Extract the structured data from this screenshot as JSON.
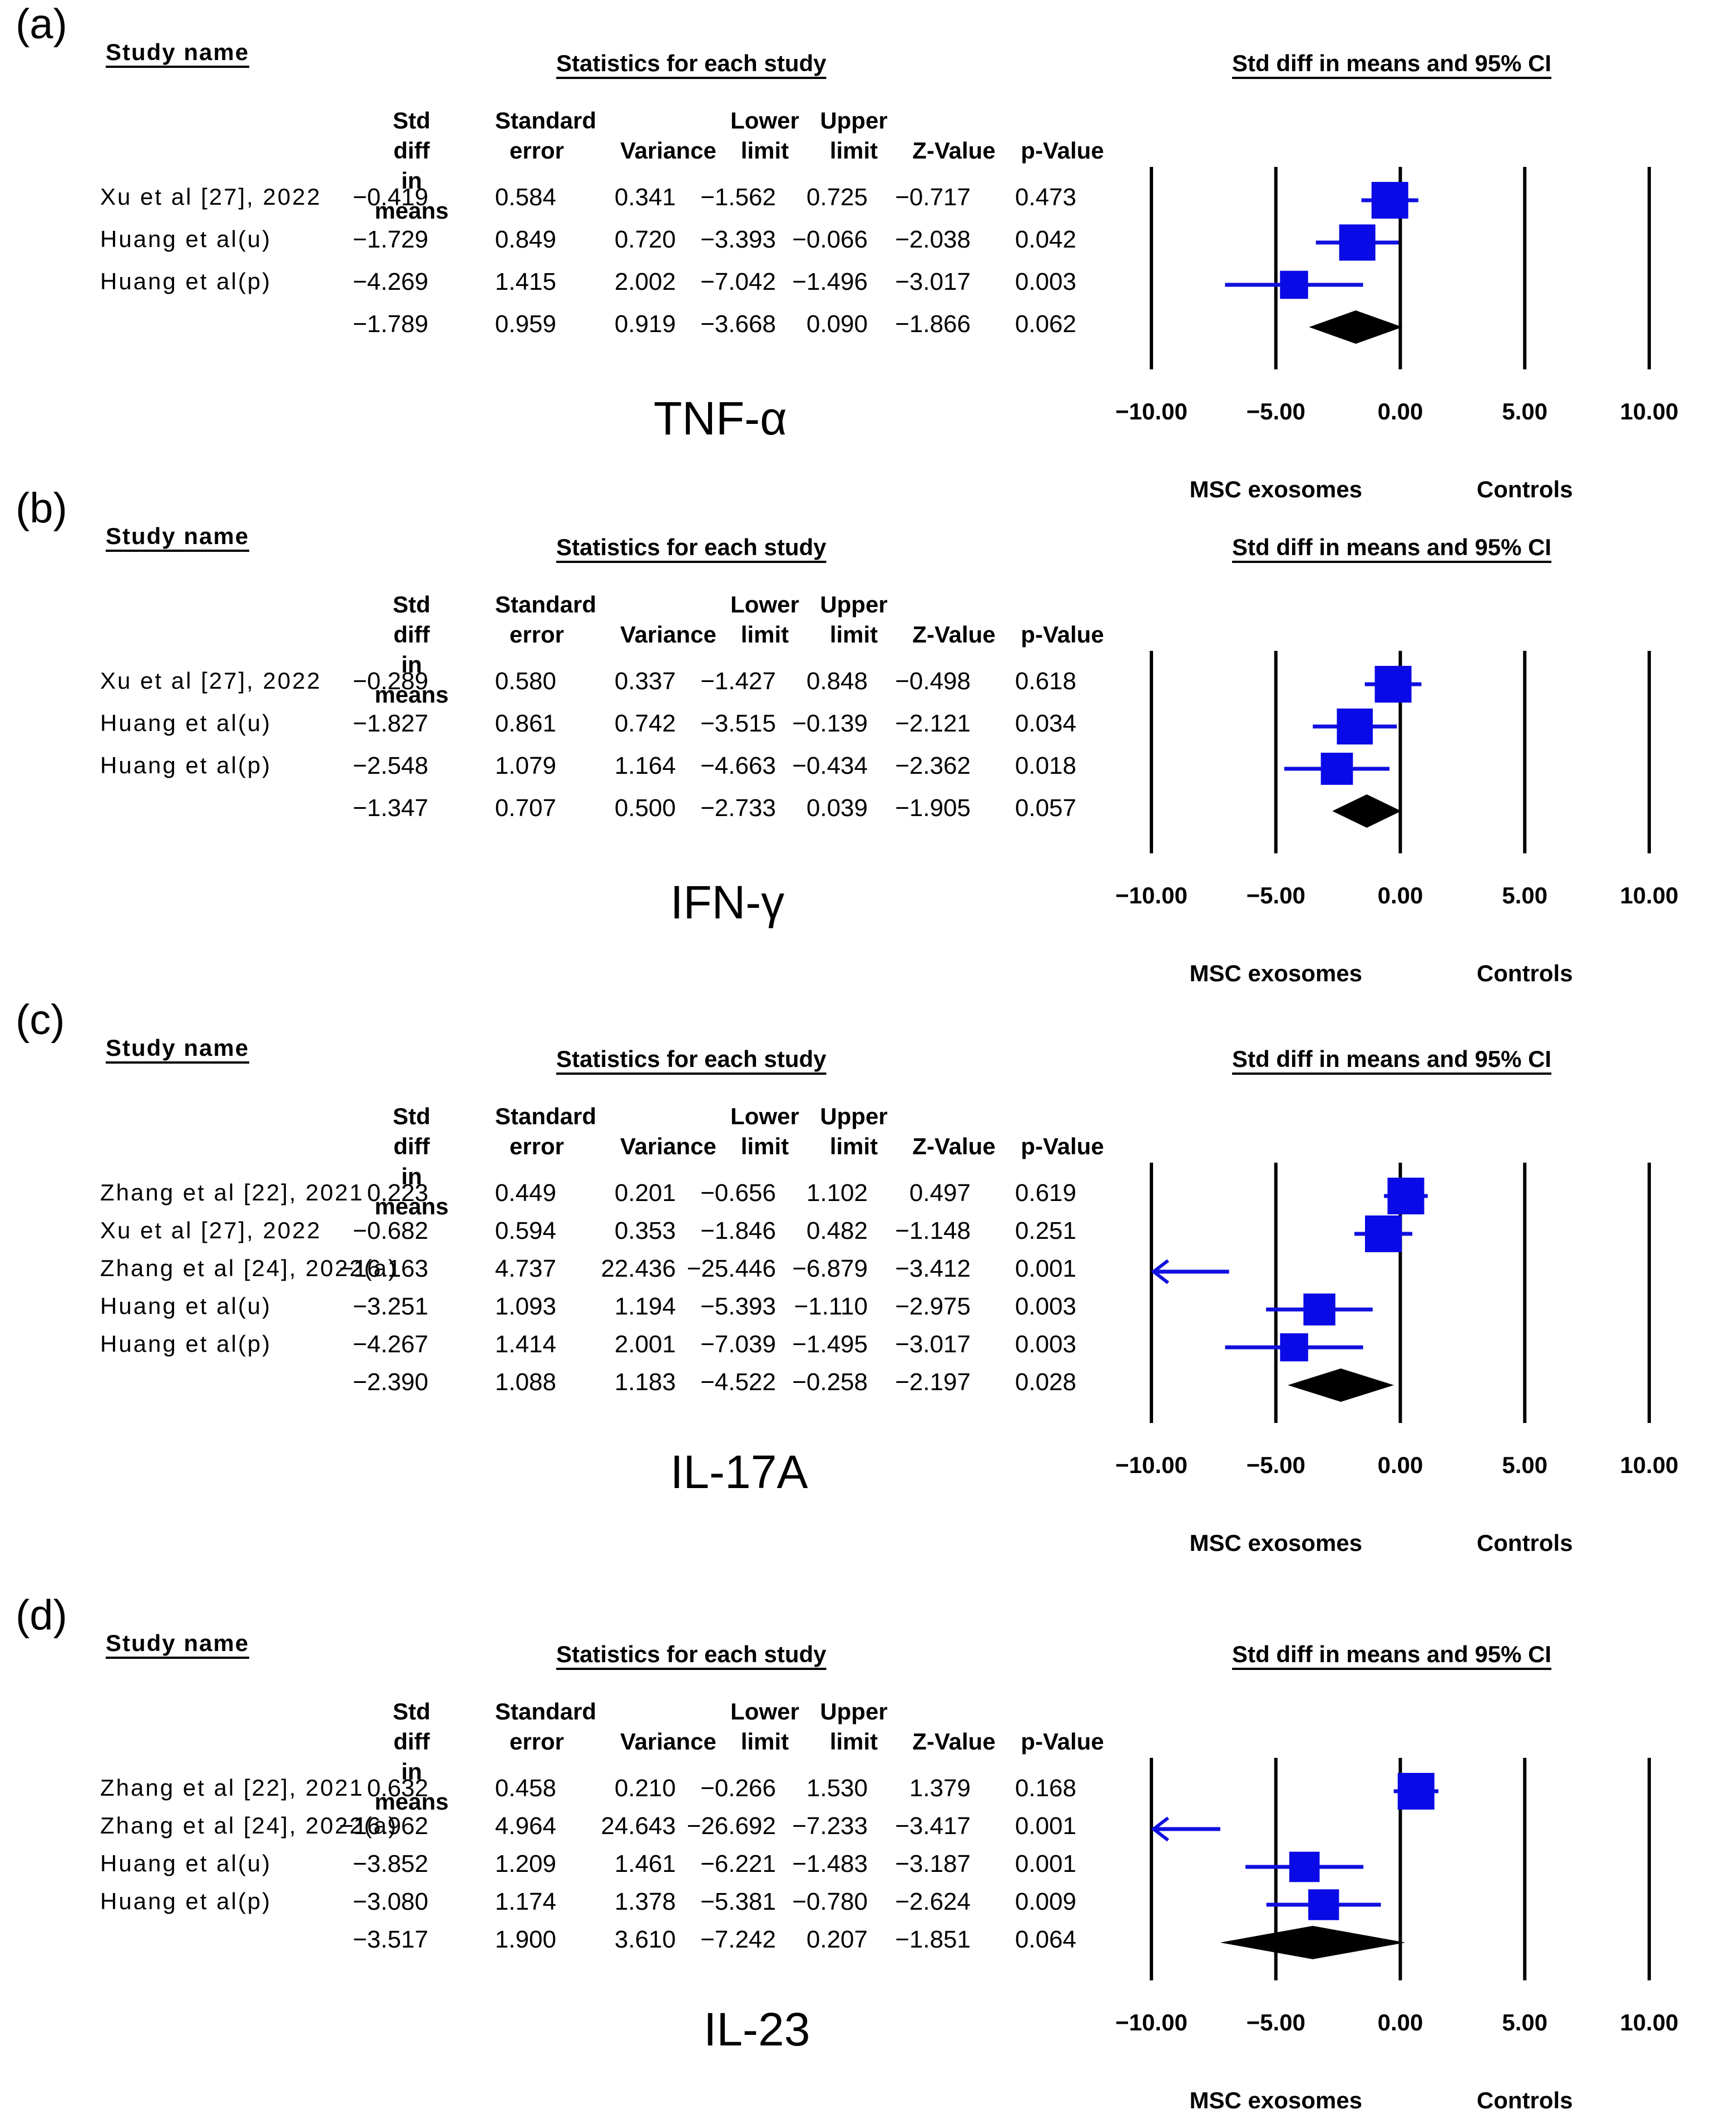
{
  "columns": {
    "study_name": "Study name",
    "statistics": "Statistics for each study",
    "ci_header": "Std diff in means and 95% CI",
    "std_diff": [
      "Std diff",
      "in means"
    ],
    "std_err": [
      "Standard",
      "error"
    ],
    "variance": "Variance",
    "lower": [
      "Lower",
      "limit"
    ],
    "upper": [
      "Upper",
      "limit"
    ],
    "z": "Z-Value",
    "p": "p-Value"
  },
  "x_axis": {
    "ticks": [
      "-10.00",
      "-5.00",
      "0.00",
      "5.00",
      "10.00"
    ],
    "left_label": "MSC exosomes",
    "right_label": "Controls"
  },
  "chart_data": [
    {
      "type": "forest",
      "panel": "(a)",
      "title": "TNF-α",
      "xlim": [
        -10,
        10
      ],
      "studies": [
        {
          "name": "Xu et al [27], 2022",
          "smd": -0.419,
          "se": 0.584,
          "var": 0.341,
          "lower": -1.562,
          "upper": 0.725,
          "z": -0.717,
          "p": 0.473
        },
        {
          "name": "Huang et al(u)",
          "smd": -1.729,
          "se": 0.849,
          "var": 0.72,
          "lower": -3.393,
          "upper": -0.066,
          "z": -2.038,
          "p": 0.042
        },
        {
          "name": "Huang et al(p)",
          "smd": -4.269,
          "se": 1.415,
          "var": 2.002,
          "lower": -7.042,
          "upper": -1.496,
          "z": -3.017,
          "p": 0.003
        }
      ],
      "pooled": {
        "smd": -1.789,
        "se": 0.959,
        "var": 0.919,
        "lower": -3.668,
        "upper": 0.09,
        "z": -1.866,
        "p": 0.062
      }
    },
    {
      "type": "forest",
      "panel": "(b)",
      "title": "IFN-γ",
      "xlim": [
        -10,
        10
      ],
      "studies": [
        {
          "name": "Xu et al [27], 2022",
          "smd": -0.289,
          "se": 0.58,
          "var": 0.337,
          "lower": -1.427,
          "upper": 0.848,
          "z": -0.498,
          "p": 0.618
        },
        {
          "name": "Huang et al(u)",
          "smd": -1.827,
          "se": 0.861,
          "var": 0.742,
          "lower": -3.515,
          "upper": -0.139,
          "z": -2.121,
          "p": 0.034
        },
        {
          "name": "Huang et al(p)",
          "smd": -2.548,
          "se": 1.079,
          "var": 1.164,
          "lower": -4.663,
          "upper": -0.434,
          "z": -2.362,
          "p": 0.018
        }
      ],
      "pooled": {
        "smd": -1.347,
        "se": 0.707,
        "var": 0.5,
        "lower": -2.733,
        "upper": 0.039,
        "z": -1.905,
        "p": 0.057
      }
    },
    {
      "type": "forest",
      "panel": "(c)",
      "title": "IL-17A",
      "xlim": [
        -10,
        10
      ],
      "studies": [
        {
          "name": "Zhang et al [22], 2021",
          "smd": 0.223,
          "se": 0.449,
          "var": 0.201,
          "lower": -0.656,
          "upper": 1.102,
          "z": 0.497,
          "p": 0.619
        },
        {
          "name": "Xu et al [27], 2022",
          "smd": -0.682,
          "se": 0.594,
          "var": 0.353,
          "lower": -1.846,
          "upper": 0.482,
          "z": -1.148,
          "p": 0.251
        },
        {
          "name": "Zhang et al [24], 2022(a)",
          "smd": -16.163,
          "se": 4.737,
          "var": 22.436,
          "lower": -25.446,
          "upper": -6.879,
          "z": -3.412,
          "p": 0.001
        },
        {
          "name": "Huang et al(u)",
          "smd": -3.251,
          "se": 1.093,
          "var": 1.194,
          "lower": -5.393,
          "upper": -1.11,
          "z": -2.975,
          "p": 0.003
        },
        {
          "name": "Huang et al(p)",
          "smd": -4.267,
          "se": 1.414,
          "var": 2.001,
          "lower": -7.039,
          "upper": -1.495,
          "z": -3.017,
          "p": 0.003
        }
      ],
      "pooled": {
        "smd": -2.39,
        "se": 1.088,
        "var": 1.183,
        "lower": -4.522,
        "upper": -0.258,
        "z": -2.197,
        "p": 0.028
      }
    },
    {
      "type": "forest",
      "panel": "(d)",
      "title": "IL-23",
      "xlim": [
        -10,
        10
      ],
      "studies": [
        {
          "name": "Zhang et al [22], 2021",
          "smd": 0.632,
          "se": 0.458,
          "var": 0.21,
          "lower": -0.266,
          "upper": 1.53,
          "z": 1.379,
          "p": 0.168
        },
        {
          "name": "Zhang et al [24], 2022(a)",
          "smd": -16.962,
          "se": 4.964,
          "var": 24.643,
          "lower": -26.692,
          "upper": -7.233,
          "z": -3.417,
          "p": 0.001
        },
        {
          "name": "Huang et al(u)",
          "smd": -3.852,
          "se": 1.209,
          "var": 1.461,
          "lower": -6.221,
          "upper": -1.483,
          "z": -3.187,
          "p": 0.001
        },
        {
          "name": "Huang et al(p)",
          "smd": -3.08,
          "se": 1.174,
          "var": 1.378,
          "lower": -5.381,
          "upper": -0.78,
          "z": -2.624,
          "p": 0.009
        }
      ],
      "pooled": {
        "smd": -3.517,
        "se": 1.9,
        "var": 3.61,
        "lower": -7.242,
        "upper": 0.207,
        "z": -1.851,
        "p": 0.064
      }
    }
  ]
}
